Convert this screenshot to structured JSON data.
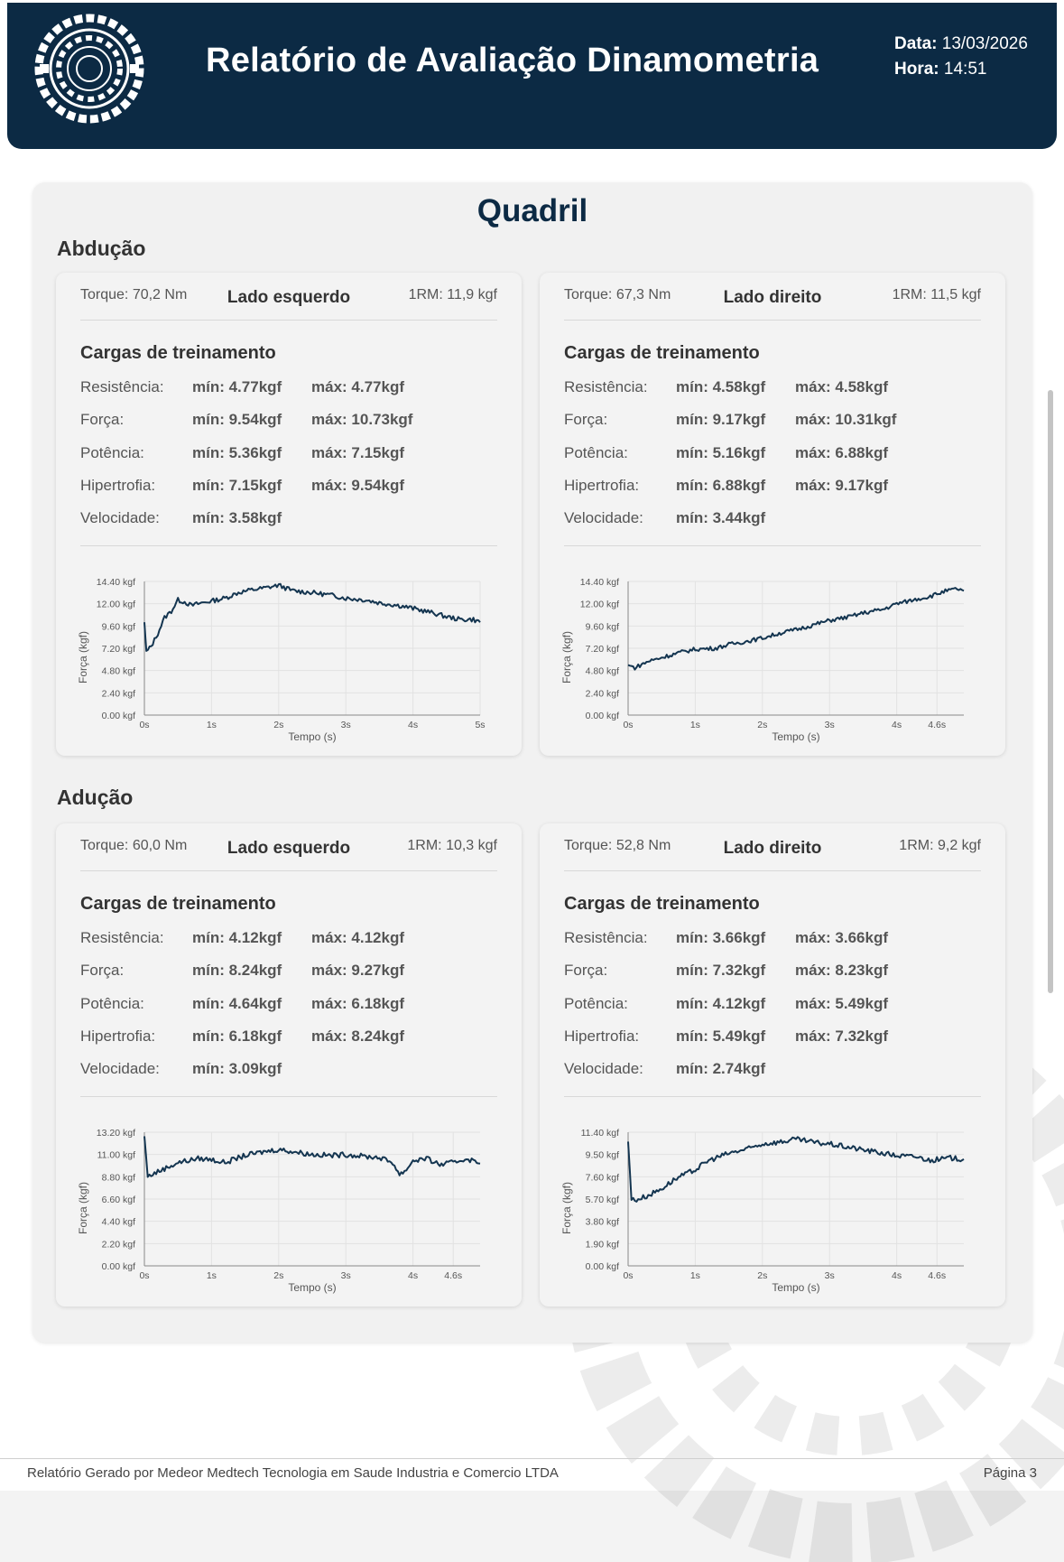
{
  "header": {
    "title": "Relatório de Avaliação Dinamometria",
    "date_label": "Data:",
    "date_value": "13/03/2026",
    "time_label": "Hora:",
    "time_value": "14:51"
  },
  "section": {
    "title": "Quadril"
  },
  "movements": [
    {
      "title": "Abdução",
      "cards": [
        {
          "torque": "Torque: 70,2 Nm",
          "side": "Lado esquerdo",
          "rm": "1RM: 11,9 kgf",
          "cargas_title": "Cargas de treinamento",
          "rows": [
            {
              "label": "Resistência:",
              "min": "mín: 4.77kgf",
              "max": "máx: 4.77kgf"
            },
            {
              "label": "Força:",
              "min": "mín: 9.54kgf",
              "max": "máx: 10.73kgf"
            },
            {
              "label": "Potência:",
              "min": "mín: 5.36kgf",
              "max": "máx: 7.15kgf"
            },
            {
              "label": "Hipertrofia:",
              "min": "mín: 7.15kgf",
              "max": "máx: 9.54kgf"
            },
            {
              "label": "Velocidade:",
              "min": "mín: 3.58kgf",
              "max": ""
            }
          ]
        },
        {
          "torque": "Torque: 67,3 Nm",
          "side": "Lado direito",
          "rm": "1RM: 11,5 kgf",
          "cargas_title": "Cargas de treinamento",
          "rows": [
            {
              "label": "Resistência:",
              "min": "mín: 4.58kgf",
              "max": "máx: 4.58kgf"
            },
            {
              "label": "Força:",
              "min": "mín: 9.17kgf",
              "max": "máx: 10.31kgf"
            },
            {
              "label": "Potência:",
              "min": "mín: 5.16kgf",
              "max": "máx: 6.88kgf"
            },
            {
              "label": "Hipertrofia:",
              "min": "mín: 6.88kgf",
              "max": "máx: 9.17kgf"
            },
            {
              "label": "Velocidade:",
              "min": "mín: 3.44kgf",
              "max": ""
            }
          ]
        }
      ]
    },
    {
      "title": "Adução",
      "cards": [
        {
          "torque": "Torque: 60,0 Nm",
          "side": "Lado esquerdo",
          "rm": "1RM: 10,3 kgf",
          "cargas_title": "Cargas de treinamento",
          "rows": [
            {
              "label": "Resistência:",
              "min": "mín: 4.12kgf",
              "max": "máx: 4.12kgf"
            },
            {
              "label": "Força:",
              "min": "mín: 8.24kgf",
              "max": "máx: 9.27kgf"
            },
            {
              "label": "Potência:",
              "min": "mín: 4.64kgf",
              "max": "máx: 6.18kgf"
            },
            {
              "label": "Hipertrofia:",
              "min": "mín: 6.18kgf",
              "max": "máx: 8.24kgf"
            },
            {
              "label": "Velocidade:",
              "min": "mín: 3.09kgf",
              "max": ""
            }
          ]
        },
        {
          "torque": "Torque: 52,8 Nm",
          "side": "Lado direito",
          "rm": "1RM: 9,2 kgf",
          "cargas_title": "Cargas de treinamento",
          "rows": [
            {
              "label": "Resistência:",
              "min": "mín: 3.66kgf",
              "max": "máx: 3.66kgf"
            },
            {
              "label": "Força:",
              "min": "mín: 7.32kgf",
              "max": "máx: 8.23kgf"
            },
            {
              "label": "Potência:",
              "min": "mín: 4.12kgf",
              "max": "máx: 5.49kgf"
            },
            {
              "label": "Hipertrofia:",
              "min": "mín: 5.49kgf",
              "max": "máx: 7.32kgf"
            },
            {
              "label": "Velocidade:",
              "min": "mín: 2.74kgf",
              "max": ""
            }
          ]
        }
      ]
    }
  ],
  "chart_data": [
    {
      "type": "line",
      "xlabel": "Tempo (s)",
      "ylabel": "Força (kgf)",
      "xlim": [
        0,
        5
      ],
      "ylim": [
        0,
        14.4
      ],
      "x_ticks": [
        0,
        1,
        2,
        3,
        4,
        5
      ],
      "x_tick_labels": [
        "0s",
        "1s",
        "2s",
        "3s",
        "4s",
        "5s"
      ],
      "y_tick_labels": [
        "14.40 kgf",
        "12.00 kgf",
        "9.60 kgf",
        "7.20 kgf",
        "4.80 kgf",
        "2.40 kgf",
        "0.00 kgf"
      ],
      "line_color": "#143550",
      "x": [
        0,
        0.03,
        0.1,
        0.2,
        0.3,
        0.4,
        0.5,
        0.6,
        0.7,
        0.8,
        1.0,
        1.2,
        1.4,
        1.6,
        1.8,
        2.0,
        2.2,
        2.5,
        2.8,
        3.0,
        3.3,
        3.5,
        3.8,
        4.0,
        4.3,
        4.5,
        4.7,
        4.9,
        5.0
      ],
      "y": [
        10.0,
        6.8,
        7.4,
        8.8,
        10.5,
        11.2,
        12.4,
        12.2,
        11.8,
        12.0,
        12.3,
        12.6,
        13.2,
        13.5,
        13.7,
        14.0,
        13.4,
        13.2,
        12.9,
        12.6,
        12.4,
        12.1,
        11.8,
        11.5,
        11.0,
        10.6,
        10.3,
        10.3,
        10.0
      ],
      "jitter": 0.25
    },
    {
      "type": "line",
      "xlabel": "Tempo (s)",
      "ylabel": "Força (kgf)",
      "xlim": [
        0,
        5
      ],
      "ylim": [
        0,
        14.4
      ],
      "x_ticks": [
        0,
        1,
        2,
        3,
        4,
        4.6
      ],
      "x_tick_labels": [
        "0s",
        "1s",
        "2s",
        "3s",
        "4s",
        "4.6s"
      ],
      "y_tick_labels": [
        "14.40 kgf",
        "12.00 kgf",
        "9.60 kgf",
        "7.20 kgf",
        "4.80 kgf",
        "2.40 kgf",
        "0.00 kgf"
      ],
      "line_color": "#143550",
      "x": [
        0,
        0.1,
        0.3,
        0.5,
        0.8,
        1.0,
        1.3,
        1.5,
        1.8,
        2.0,
        2.3,
        2.5,
        2.8,
        3.0,
        3.3,
        3.5,
        3.8,
        4.0,
        4.3,
        4.5,
        4.7,
        4.9,
        5.0
      ],
      "y": [
        5.4,
        5.1,
        5.8,
        6.2,
        6.8,
        7.1,
        7.2,
        7.6,
        8.0,
        8.3,
        8.9,
        9.2,
        9.8,
        10.2,
        10.6,
        11.0,
        11.4,
        12.0,
        12.5,
        12.8,
        13.3,
        13.6,
        13.4
      ],
      "jitter": 0.22
    },
    {
      "type": "line",
      "xlabel": "Tempo (s)",
      "ylabel": "Força (kgf)",
      "xlim": [
        0,
        5
      ],
      "ylim": [
        0,
        13.2
      ],
      "x_ticks": [
        0,
        1,
        2,
        3,
        4,
        4.6
      ],
      "x_tick_labels": [
        "0s",
        "1s",
        "2s",
        "3s",
        "4s",
        "4.6s"
      ],
      "y_tick_labels": [
        "13.20 kgf",
        "11.00 kgf",
        "8.80 kgf",
        "6.60 kgf",
        "4.40 kgf",
        "2.20 kgf",
        "0.00 kgf"
      ],
      "line_color": "#143550",
      "x": [
        0,
        0.05,
        0.1,
        0.3,
        0.5,
        0.8,
        1.0,
        1.2,
        1.5,
        1.8,
        2.0,
        2.3,
        2.5,
        2.8,
        3.0,
        3.3,
        3.5,
        3.7,
        3.8,
        3.9,
        4.0,
        4.2,
        4.4,
        4.6,
        4.8,
        5.0
      ],
      "y": [
        12.8,
        8.8,
        9.0,
        9.6,
        10.2,
        10.6,
        10.5,
        10.2,
        10.9,
        11.3,
        11.5,
        11.2,
        11.0,
        10.9,
        11.0,
        10.8,
        10.7,
        10.2,
        9.0,
        9.5,
        10.4,
        10.6,
        10.0,
        10.2,
        10.6,
        10.1
      ],
      "jitter": 0.25
    },
    {
      "type": "line",
      "xlabel": "Tempo (s)",
      "ylabel": "Força (kgf)",
      "xlim": [
        0,
        5
      ],
      "ylim": [
        0,
        11.4
      ],
      "x_ticks": [
        0,
        1,
        2,
        3,
        4,
        4.6
      ],
      "x_tick_labels": [
        "0s",
        "1s",
        "2s",
        "3s",
        "4s",
        "4.6s"
      ],
      "y_tick_labels": [
        "11.40 kgf",
        "9.50 kgf",
        "7.60 kgf",
        "5.70 kgf",
        "3.80 kgf",
        "1.90 kgf",
        "0.00 kgf"
      ],
      "line_color": "#143550",
      "x": [
        0,
        0.05,
        0.1,
        0.3,
        0.5,
        0.7,
        1.0,
        1.2,
        1.5,
        1.8,
        2.0,
        2.3,
        2.5,
        2.8,
        3.0,
        3.3,
        3.5,
        3.8,
        4.0,
        4.3,
        4.5,
        4.8,
        5.0
      ],
      "y": [
        10.6,
        5.7,
        5.6,
        6.0,
        6.6,
        7.4,
        8.2,
        9.0,
        9.6,
        10.0,
        10.4,
        10.6,
        10.8,
        10.5,
        10.4,
        10.1,
        9.9,
        9.6,
        9.4,
        9.3,
        9.0,
        9.2,
        9.1
      ],
      "jitter": 0.22
    }
  ],
  "footer": {
    "left": "Relatório Gerado por Medeor Medtech Tecnologia em Saude Industria e Comercio LTDA",
    "right": "Página 3"
  }
}
